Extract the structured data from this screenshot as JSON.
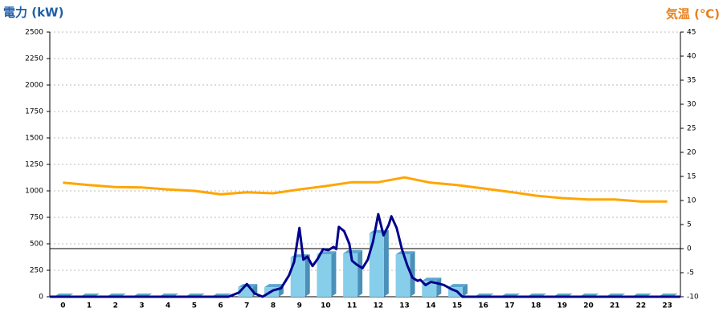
{
  "chart_data": {
    "type": "bar",
    "y_label": "電力 (kW)",
    "y2_label": "気温 (℃)",
    "categories": [
      "0",
      "1",
      "2",
      "3",
      "4",
      "5",
      "6",
      "7",
      "8",
      "9",
      "10",
      "11",
      "12",
      "13",
      "14",
      "15",
      "16",
      "17",
      "18",
      "19",
      "20",
      "21",
      "22",
      "23"
    ],
    "xlim": [
      -0.5,
      23.5
    ],
    "ylim": [
      0,
      2500
    ],
    "yticks": [
      0,
      250,
      500,
      750,
      1000,
      1250,
      1500,
      1750,
      2000,
      2250,
      2500
    ],
    "y2lim": [
      -10,
      45
    ],
    "y2ticks": [
      -10,
      -5,
      0,
      5,
      10,
      15,
      20,
      25,
      30,
      35,
      40,
      45
    ],
    "grid": true,
    "series": [
      {
        "type": "bar",
        "color": "#87ceeb",
        "values": [
          0,
          0,
          0,
          0,
          0,
          0,
          0,
          90,
          90,
          370,
          400,
          410,
          600,
          400,
          150,
          90,
          0,
          0,
          0,
          0,
          0,
          0,
          0,
          0
        ]
      },
      {
        "type": "line",
        "color": "#00008b",
        "x": [
          -0.5,
          6.3,
          6.7,
          7.0,
          7.3,
          7.6,
          8.0,
          8.3,
          8.6,
          8.8,
          9.0,
          9.15,
          9.3,
          9.5,
          9.7,
          9.9,
          10.1,
          10.3,
          10.4,
          10.5,
          10.7,
          10.9,
          11.0,
          11.2,
          11.4,
          11.6,
          11.8,
          12.0,
          12.2,
          12.4,
          12.5,
          12.7,
          12.9,
          13.1,
          13.3,
          13.5,
          13.6,
          13.8,
          14.0,
          14.2,
          14.5,
          14.8,
          15.0,
          15.2,
          23.5
        ],
        "values": [
          0,
          0,
          40,
          120,
          30,
          0,
          60,
          80,
          200,
          330,
          650,
          350,
          380,
          290,
          360,
          450,
          440,
          470,
          450,
          660,
          620,
          500,
          340,
          300,
          270,
          350,
          520,
          780,
          580,
          680,
          760,
          650,
          450,
          300,
          180,
          150,
          160,
          110,
          140,
          130,
          110,
          70,
          50,
          0,
          0
        ]
      },
      {
        "type": "line",
        "axis": "y2",
        "color": "#ffa500",
        "values": [
          13.7,
          13.2,
          12.8,
          12.7,
          12.3,
          12.0,
          11.3,
          11.7,
          11.5,
          12.3,
          13.0,
          13.8,
          13.8,
          14.8,
          13.7,
          13.2,
          12.5,
          11.8,
          11.0,
          10.5,
          10.2,
          10.2,
          9.8,
          9.8
        ]
      }
    ]
  }
}
